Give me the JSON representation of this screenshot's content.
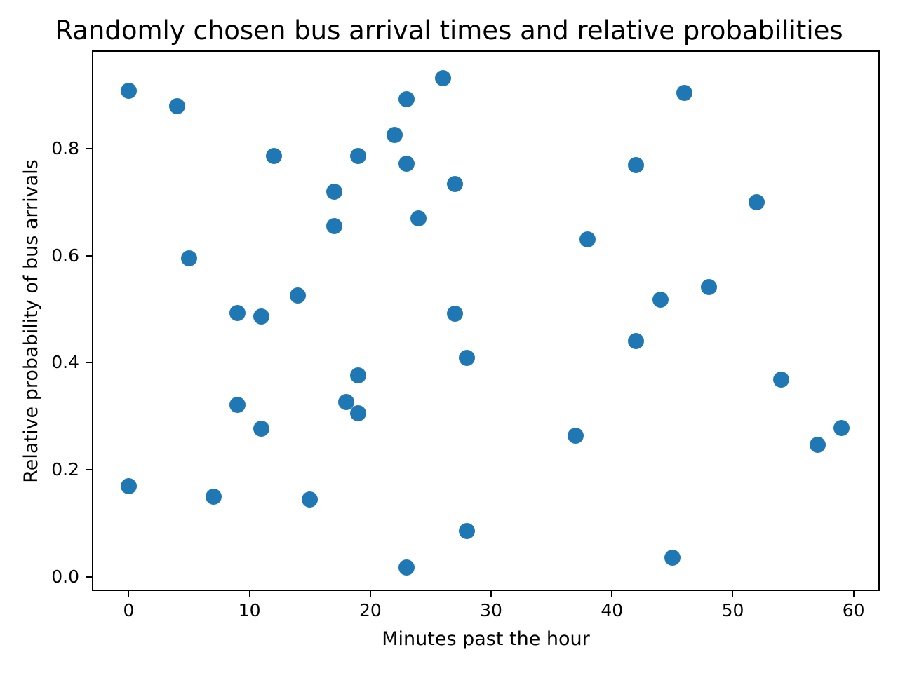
{
  "title": "Randomly chosen bus arrival times and relative probabilities",
  "chart_data": {
    "type": "scatter",
    "title": "Randomly chosen bus arrival times and relative probabilities",
    "xlabel": "Minutes past the hour",
    "ylabel": "Relative probability of bus arrivals",
    "xlim": [
      -2.93,
      62.05
    ],
    "ylim": [
      -0.0238,
      0.9809
    ],
    "xticks": [
      0,
      10,
      20,
      30,
      40,
      50,
      60
    ],
    "yticks": [
      0.0,
      0.2,
      0.4,
      0.6,
      0.8
    ],
    "grid": false,
    "legend": null,
    "marker_color": "#1f77b4",
    "points": [
      [
        0,
        0.908
      ],
      [
        0,
        0.169
      ],
      [
        4,
        0.879
      ],
      [
        5,
        0.595
      ],
      [
        7,
        0.15
      ],
      [
        9,
        0.493
      ],
      [
        9,
        0.321
      ],
      [
        11,
        0.487
      ],
      [
        11,
        0.277
      ],
      [
        12,
        0.787
      ],
      [
        14,
        0.526
      ],
      [
        15,
        0.145
      ],
      [
        17,
        0.72
      ],
      [
        17,
        0.656
      ],
      [
        18,
        0.326
      ],
      [
        19,
        0.787
      ],
      [
        19,
        0.376
      ],
      [
        19,
        0.306
      ],
      [
        22,
        0.826
      ],
      [
        23,
        0.892
      ],
      [
        23,
        0.772
      ],
      [
        23,
        0.018
      ],
      [
        24,
        0.67
      ],
      [
        26,
        0.932
      ],
      [
        27,
        0.734
      ],
      [
        27,
        0.492
      ],
      [
        28,
        0.409
      ],
      [
        28,
        0.086
      ],
      [
        37,
        0.264
      ],
      [
        38,
        0.63
      ],
      [
        42,
        0.769
      ],
      [
        42,
        0.44
      ],
      [
        44,
        0.518
      ],
      [
        45,
        0.036
      ],
      [
        46,
        0.904
      ],
      [
        48,
        0.542
      ],
      [
        52,
        0.7
      ],
      [
        54,
        0.369
      ],
      [
        57,
        0.247
      ],
      [
        59,
        0.278
      ]
    ]
  }
}
